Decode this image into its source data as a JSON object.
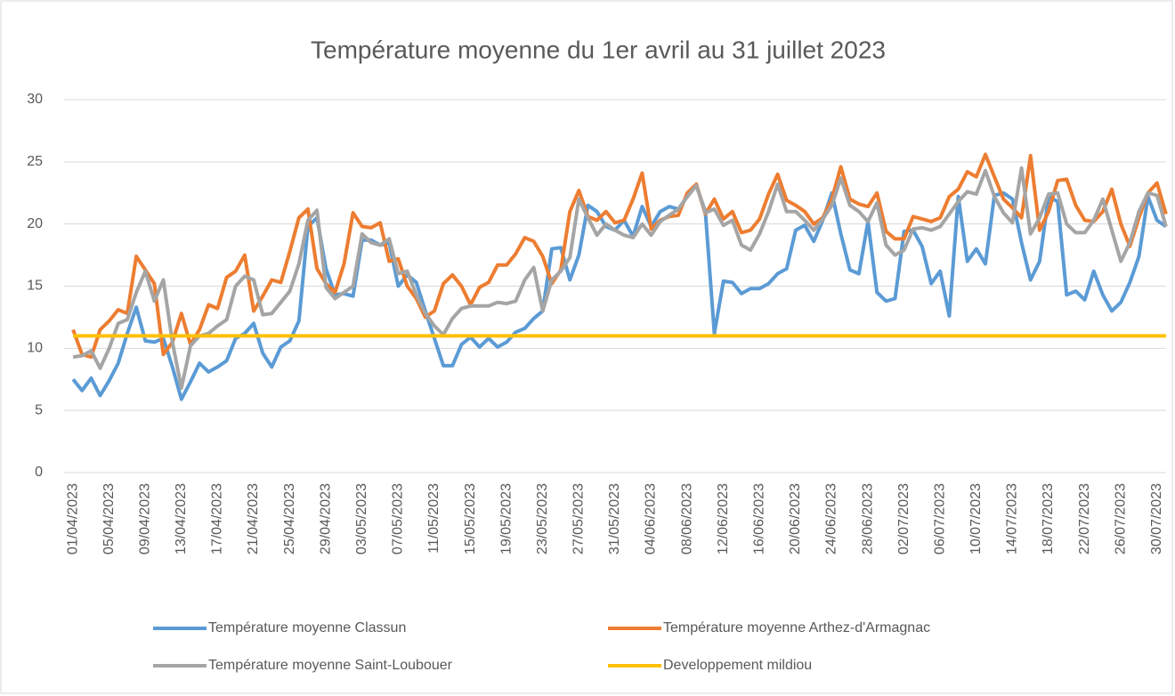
{
  "chart_data": {
    "type": "line",
    "title": "Température moyenne du 1er avril au 31 juillet 2023",
    "categories": [
      "01/04/2023",
      null,
      null,
      null,
      "05/04/2023",
      null,
      null,
      null,
      "09/04/2023",
      null,
      null,
      null,
      "13/04/2023",
      null,
      null,
      null,
      "17/04/2023",
      null,
      null,
      null,
      "21/04/2023",
      null,
      null,
      null,
      "25/04/2023",
      null,
      null,
      null,
      "29/04/2023",
      null,
      null,
      null,
      "03/05/2023",
      null,
      null,
      null,
      "07/05/2023",
      null,
      null,
      null,
      "11/05/2023",
      null,
      null,
      null,
      "15/05/2023",
      null,
      null,
      null,
      "19/05/2023",
      null,
      null,
      null,
      "23/05/2023",
      null,
      null,
      null,
      "27/05/2023",
      null,
      null,
      null,
      "31/05/2023",
      null,
      null,
      null,
      "04/06/2023",
      null,
      null,
      null,
      "08/06/2023",
      null,
      null,
      null,
      "12/06/2023",
      null,
      null,
      null,
      "16/06/2023",
      null,
      null,
      null,
      "20/06/2023",
      null,
      null,
      null,
      "24/06/2023",
      null,
      null,
      null,
      "28/06/2023",
      null,
      null,
      null,
      "02/07/2023",
      null,
      null,
      null,
      "06/07/2023",
      null,
      null,
      null,
      "10/07/2023",
      null,
      null,
      null,
      "14/07/2023",
      null,
      null,
      null,
      "18/07/2023",
      null,
      null,
      null,
      "22/07/2023",
      null,
      null,
      null,
      "26/07/2023",
      null,
      null,
      null,
      "30/07/2023",
      null
    ],
    "series": [
      {
        "name": "Température moyenne Classun",
        "color": "#5b9bd5",
        "values": [
          7.5,
          6.6,
          7.6,
          6.2,
          7.4,
          8.8,
          11.2,
          13.3,
          10.6,
          10.5,
          10.8,
          8.5,
          5.9,
          7.3,
          8.8,
          8.1,
          8.5,
          9,
          10.8,
          11.2,
          12,
          9.6,
          8.5,
          10.1,
          10.6,
          12.2,
          19.8,
          20.5,
          16.4,
          14.3,
          14.4,
          14.2,
          18.7,
          18.7,
          18.3,
          18.5,
          15,
          15.9,
          15.3,
          13,
          10.8,
          8.6,
          8.6,
          10.3,
          10.9,
          10.1,
          10.8,
          10.1,
          10.5,
          11.3,
          11.6,
          12.4,
          13,
          18,
          18.1,
          15.5,
          17.5,
          21.5,
          21,
          19.8,
          19.5,
          20.3,
          19,
          21.4,
          19.8,
          21,
          21.4,
          21.2,
          22.2,
          23.1,
          21,
          11.2,
          15.4,
          15.3,
          14.4,
          14.8,
          14.8,
          15.2,
          16,
          16.4,
          19.5,
          19.9,
          18.6,
          20.3,
          22.5,
          19.2,
          16.3,
          16,
          20.2,
          14.5,
          13.8,
          14,
          19.4,
          19.5,
          18.2,
          15.2,
          16.2,
          12.6,
          22.2,
          17,
          18,
          16.8,
          22.3,
          22.5,
          22,
          18.5,
          15.5,
          17,
          22.2,
          21.8,
          14.3,
          14.6,
          13.9,
          16.2,
          14.3,
          13,
          13.7,
          15.3,
          17.4,
          22.2,
          20.3,
          19.8
        ]
      },
      {
        "name": "Température moyenne Arthez-d'Armagnac",
        "color": "#ed7d31",
        "values": [
          11.5,
          9.5,
          9.3,
          11.5,
          12.2,
          13.1,
          12.8,
          17.4,
          16.3,
          15.2,
          9.5,
          10.5,
          12.8,
          10.3,
          11.5,
          13.5,
          13.2,
          15.7,
          16.2,
          17.5,
          13,
          14.2,
          15.5,
          15.3,
          17.8,
          20.5,
          21.2,
          16.4,
          15.2,
          14.5,
          16.8,
          20.9,
          19.8,
          19.7,
          20.1,
          17,
          17.2,
          15,
          14,
          12.5,
          13,
          15.2,
          15.9,
          15,
          13.5,
          14.9,
          15.3,
          16.7,
          16.7,
          17.6,
          18.9,
          18.6,
          17.4,
          15.2,
          16.3,
          21,
          22.7,
          20.6,
          20.3,
          21,
          20.1,
          20.3,
          22,
          24.1,
          19.6,
          20.3,
          20.6,
          20.7,
          22.5,
          23.2,
          20.8,
          22,
          20.4,
          21,
          19.3,
          19.5,
          20.4,
          22.4,
          24,
          21.9,
          21.5,
          21,
          20,
          20.5,
          22,
          24.6,
          22,
          21.6,
          21.4,
          22.5,
          19.4,
          18.8,
          18.8,
          20.6,
          20.4,
          20.2,
          20.5,
          22.2,
          22.8,
          24.2,
          23.8,
          25.6,
          23.8,
          22,
          21.3,
          20.5,
          25.5,
          19.5,
          21,
          23.5,
          23.6,
          21.5,
          20.3,
          20.2,
          21,
          22.8,
          20,
          18.2,
          20.5,
          22.5,
          23.3,
          20.8
        ]
      },
      {
        "name": "Température moyenne Saint-Loubouer",
        "color": "#a5a5a5",
        "values": [
          9.3,
          9.4,
          9.8,
          8.4,
          10,
          12,
          12.3,
          14.5,
          16.2,
          13.8,
          15.5,
          10.5,
          6.8,
          10.2,
          11,
          11.2,
          11.8,
          12.3,
          15,
          15.8,
          15.5,
          12.7,
          12.8,
          13.7,
          14.6,
          16.8,
          20.3,
          21.1,
          14.9,
          14,
          14.5,
          15,
          19.2,
          18.5,
          18.3,
          18.8,
          16,
          16.2,
          14.3,
          12.8,
          11.8,
          11.1,
          12.4,
          13.2,
          13.4,
          13.4,
          13.4,
          13.7,
          13.6,
          13.8,
          15.5,
          16.5,
          13,
          15.5,
          16.2,
          17.3,
          22,
          20.5,
          19.1,
          20,
          19.5,
          19.1,
          18.9,
          20,
          19.1,
          20.2,
          20.7,
          21.2,
          22.2,
          23.1,
          20.9,
          21.2,
          19.9,
          20.3,
          18.3,
          17.9,
          19.2,
          21,
          23.2,
          21,
          21,
          20.3,
          19.5,
          20.4,
          21.5,
          23.7,
          21.5,
          21,
          20.2,
          21.7,
          18.3,
          17.5,
          17.9,
          19.6,
          19.7,
          19.5,
          19.8,
          20.8,
          21.8,
          22.6,
          22.4,
          24.3,
          22.2,
          20.9,
          20.1,
          24.5,
          19.2,
          20.5,
          22.4,
          22.5,
          20,
          19.3,
          19.3,
          20.3,
          22,
          19.5,
          17,
          18.5,
          21,
          22.5,
          22.3,
          19.8
        ]
      },
      {
        "name": "Developpement mildiou",
        "color": "#ffc000",
        "values": [
          11,
          11,
          11,
          11,
          11,
          11,
          11,
          11,
          11,
          11,
          11,
          11,
          11,
          11,
          11,
          11,
          11,
          11,
          11,
          11,
          11,
          11,
          11,
          11,
          11,
          11,
          11,
          11,
          11,
          11,
          11,
          11,
          11,
          11,
          11,
          11,
          11,
          11,
          11,
          11,
          11,
          11,
          11,
          11,
          11,
          11,
          11,
          11,
          11,
          11,
          11,
          11,
          11,
          11,
          11,
          11,
          11,
          11,
          11,
          11,
          11,
          11,
          11,
          11,
          11,
          11,
          11,
          11,
          11,
          11,
          11,
          11,
          11,
          11,
          11,
          11,
          11,
          11,
          11,
          11,
          11,
          11,
          11,
          11,
          11,
          11,
          11,
          11,
          11,
          11,
          11,
          11,
          11,
          11,
          11,
          11,
          11,
          11,
          11,
          11,
          11,
          11,
          11,
          11,
          11,
          11,
          11,
          11,
          11,
          11,
          11,
          11,
          11,
          11,
          11,
          11,
          11,
          11,
          11,
          11,
          11,
          11
        ]
      }
    ],
    "ylim": [
      0,
      30
    ],
    "yticks": [
      0,
      5,
      10,
      15,
      20,
      25,
      30
    ],
    "grid": true,
    "legend": "bottom"
  }
}
